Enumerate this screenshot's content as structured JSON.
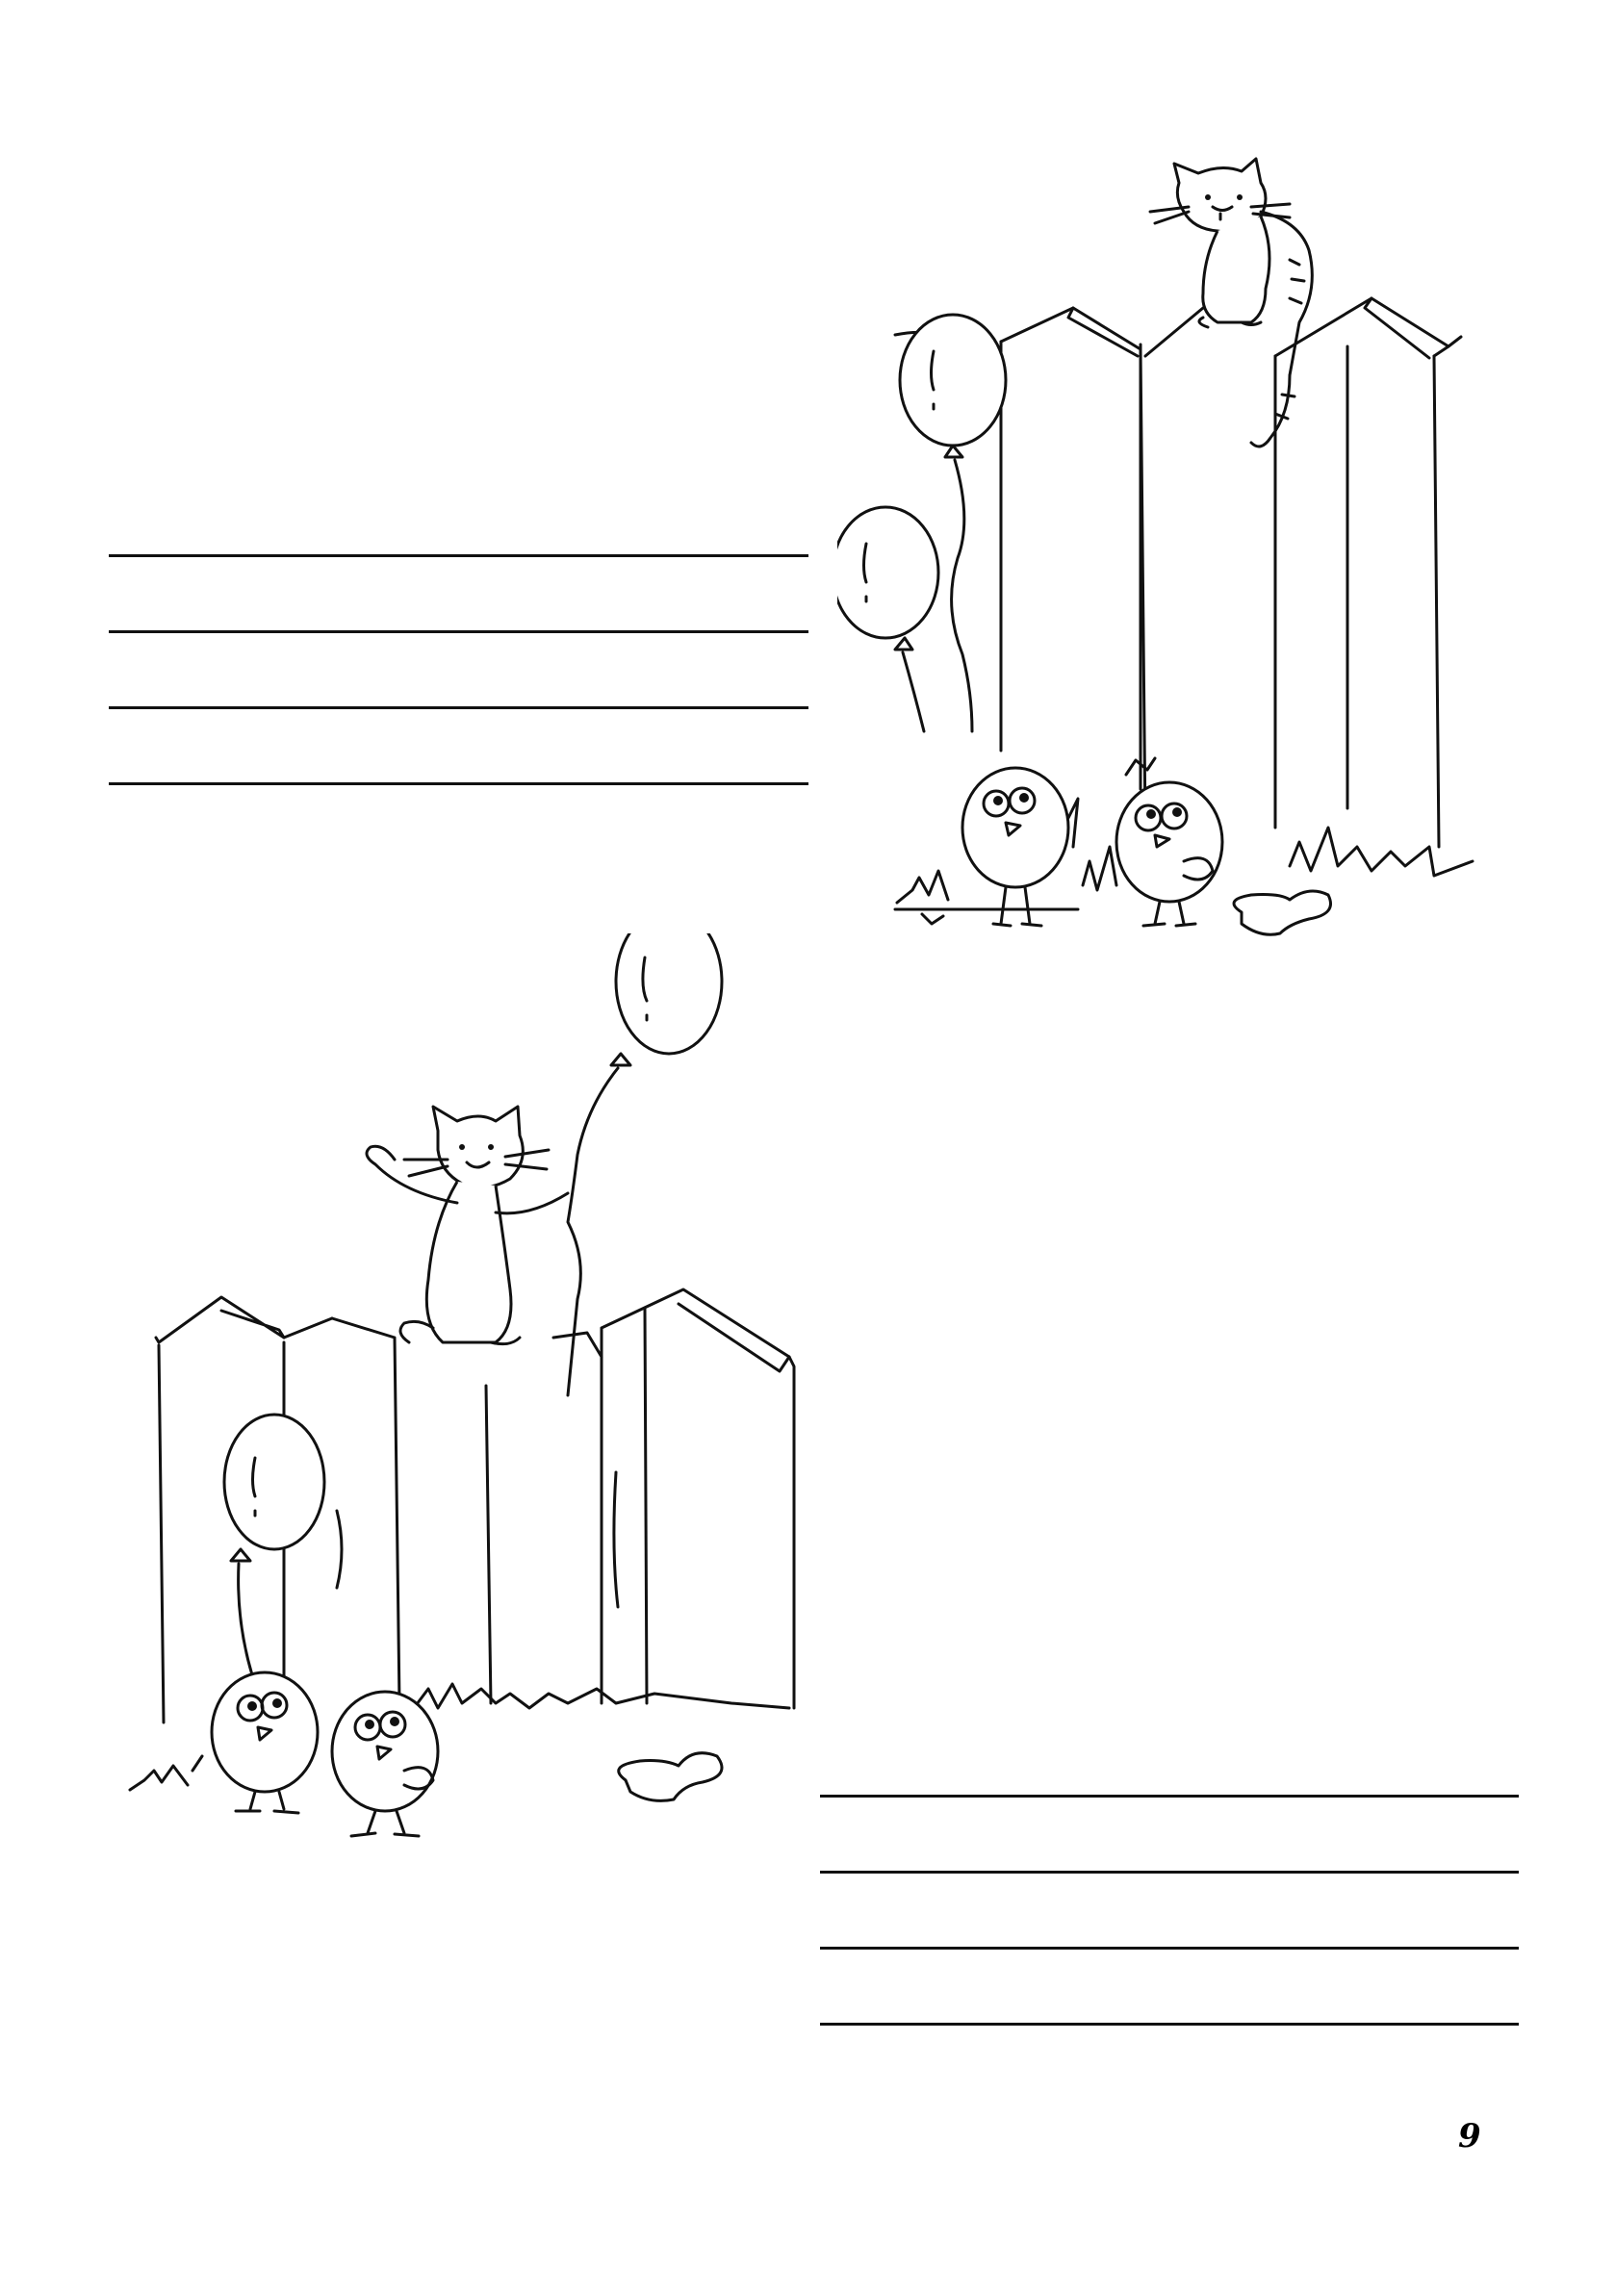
{
  "page": {
    "number": "9",
    "background": "#ffffff",
    "ink_color": "#111111"
  },
  "lines_top": {
    "count": 4
  },
  "lines_bottom": {
    "count": 4
  },
  "scenes": [
    {
      "id": "scene-sad",
      "characters": [
        "cat-icon",
        "balloon-icon",
        "balloon-icon",
        "chick-icon",
        "chick-icon"
      ]
    },
    {
      "id": "scene-happy",
      "characters": [
        "cat-icon",
        "balloon-icon",
        "balloon-icon",
        "chick-icon",
        "chick-icon"
      ]
    }
  ]
}
